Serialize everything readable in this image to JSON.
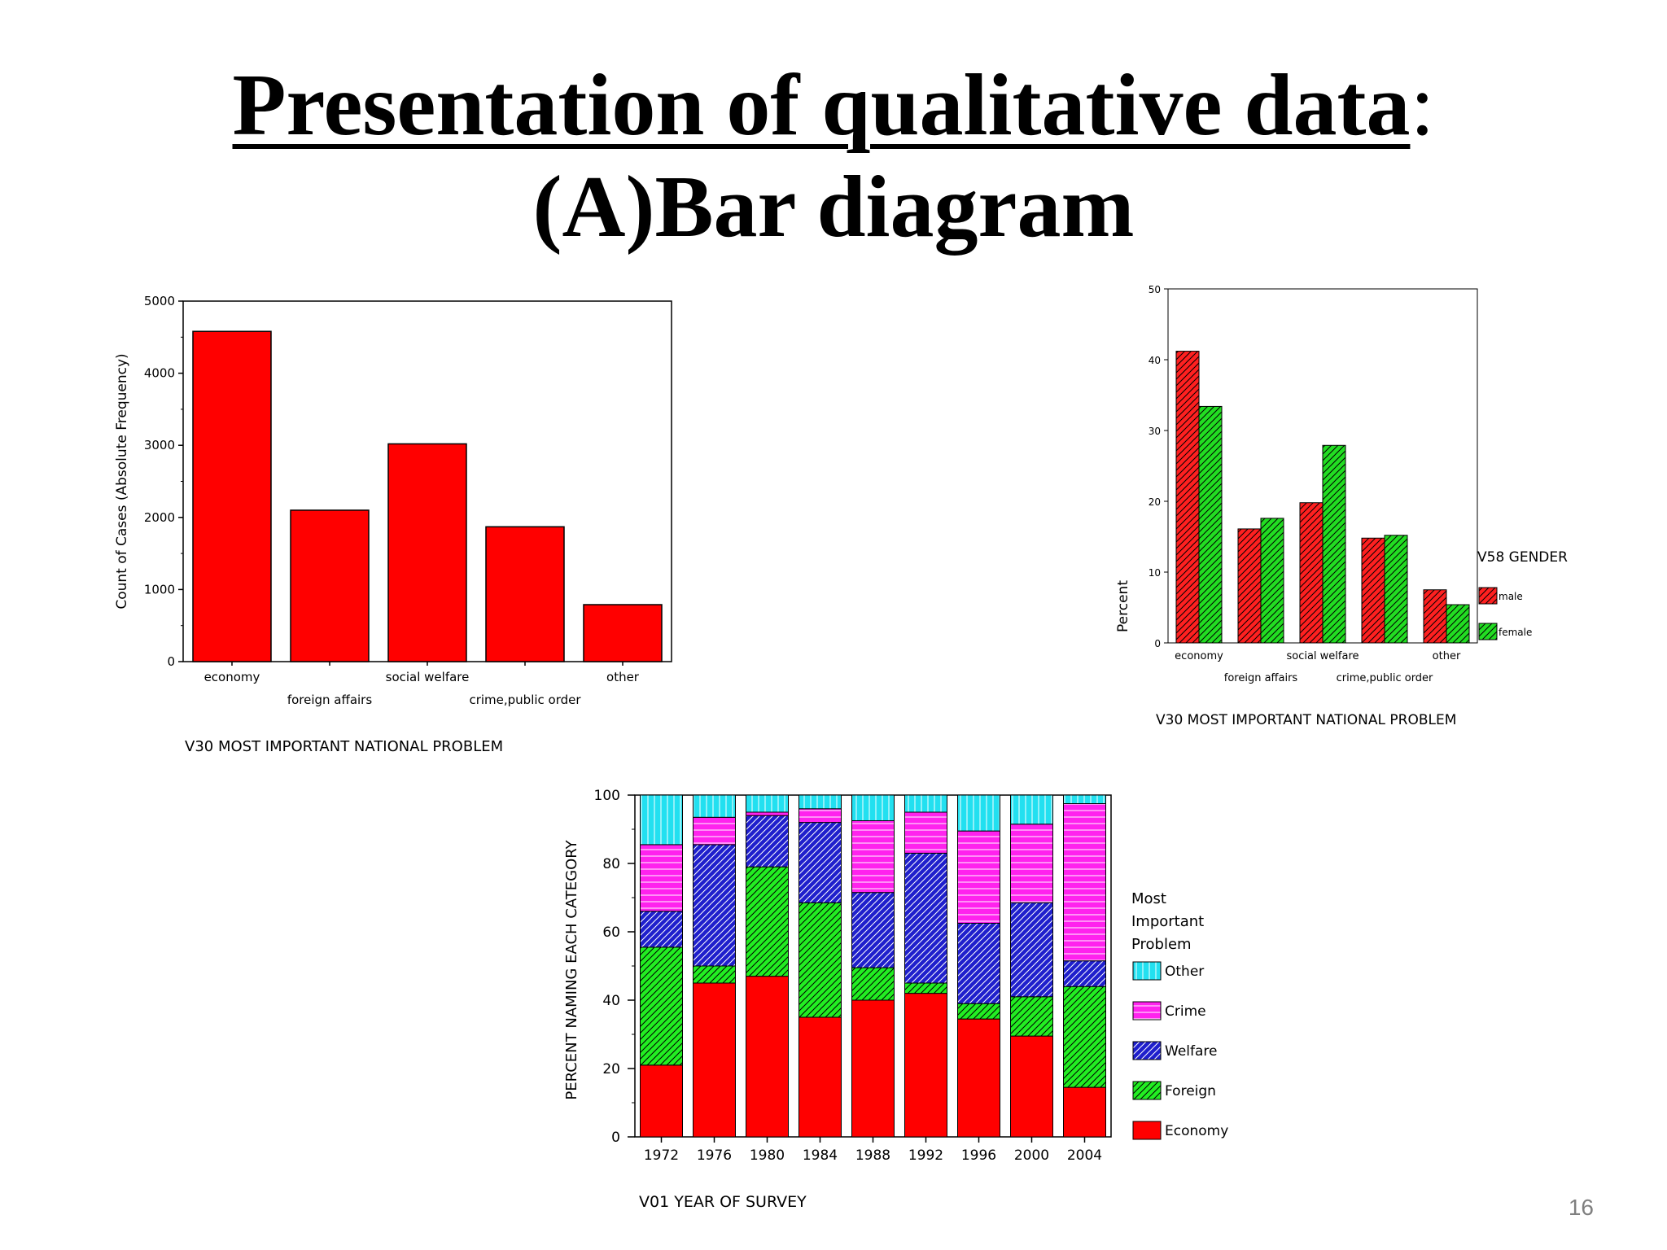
{
  "slide": {
    "title_line1": "Presentation of qualitative data",
    "title_colon": ":",
    "title_line2": "(A)Bar diagram",
    "page_number": "16"
  },
  "chart_data": [
    {
      "type": "bar",
      "categories": [
        "economy",
        "foreign affairs",
        "social welfare",
        "crime,public order",
        "other"
      ],
      "values": [
        4580,
        2100,
        3020,
        1870,
        790
      ],
      "title": "",
      "xlabel": "V30 MOST IMPORTANT NATIONAL PROBLEM",
      "ylabel": "Count of Cases (Absolute Frequency)",
      "ylim": [
        0,
        5000
      ],
      "yticks": [
        "0",
        "1000",
        "2000",
        "3000",
        "4000",
        "5000"
      ],
      "grid": false,
      "color": "#ff0000"
    },
    {
      "type": "bar",
      "categories": [
        "economy",
        "foreign affairs",
        "social welfare",
        "crime,public order",
        "other"
      ],
      "series": [
        {
          "name": "male",
          "values": [
            41.2,
            16.1,
            19.8,
            14.8,
            7.5
          ],
          "color": "#ff2020"
        },
        {
          "name": "female",
          "values": [
            33.4,
            17.6,
            27.9,
            15.2,
            5.4
          ],
          "color": "#22dd22"
        }
      ],
      "title": "",
      "xlabel": "V30 MOST IMPORTANT NATIONAL PROBLEM",
      "ylabel": "Percent",
      "ylim": [
        0,
        50
      ],
      "yticks": [
        "0",
        "10",
        "20",
        "30",
        "40",
        "50"
      ],
      "legend_title": "V58 GENDER",
      "legend_position": "right",
      "grid": false
    },
    {
      "type": "bar",
      "stacked": true,
      "categories": [
        "1972",
        "1976",
        "1980",
        "1984",
        "1988",
        "1992",
        "1996",
        "2000",
        "2004"
      ],
      "series": [
        {
          "name": "Economy",
          "values": [
            21,
            45,
            47,
            35,
            40,
            42,
            34.5,
            29.5,
            14.5
          ],
          "color": "#ff0000"
        },
        {
          "name": "Foreign",
          "values": [
            34.5,
            5,
            32,
            33.5,
            9.5,
            3,
            4.5,
            11.5,
            29.5
          ],
          "color": "#22ee22"
        },
        {
          "name": "Welfare",
          "values": [
            10.5,
            35.5,
            15,
            23.5,
            22,
            38,
            23.5,
            27.5,
            7.5
          ],
          "color": "#1f1fcc"
        },
        {
          "name": "Crime",
          "values": [
            19.5,
            8,
            1,
            4,
            21,
            12,
            27,
            23,
            46
          ],
          "color": "#ff22ee"
        },
        {
          "name": "Other",
          "values": [
            14.5,
            6.5,
            5,
            4,
            7.5,
            5,
            10.5,
            8.5,
            2.5
          ],
          "color": "#22e0f0"
        }
      ],
      "title": "",
      "xlabel": "V01 YEAR OF SURVEY",
      "ylabel": "PERCENT NAMING EACH CATEGORY",
      "ylim": [
        0,
        100
      ],
      "yticks": [
        "0",
        "20",
        "40",
        "60",
        "80",
        "100"
      ],
      "legend_title": [
        "Most",
        "Important",
        "Problem"
      ],
      "legend_order": [
        "Other",
        "Crime",
        "Welfare",
        "Foreign",
        "Economy"
      ],
      "legend_position": "right",
      "grid": false
    }
  ]
}
